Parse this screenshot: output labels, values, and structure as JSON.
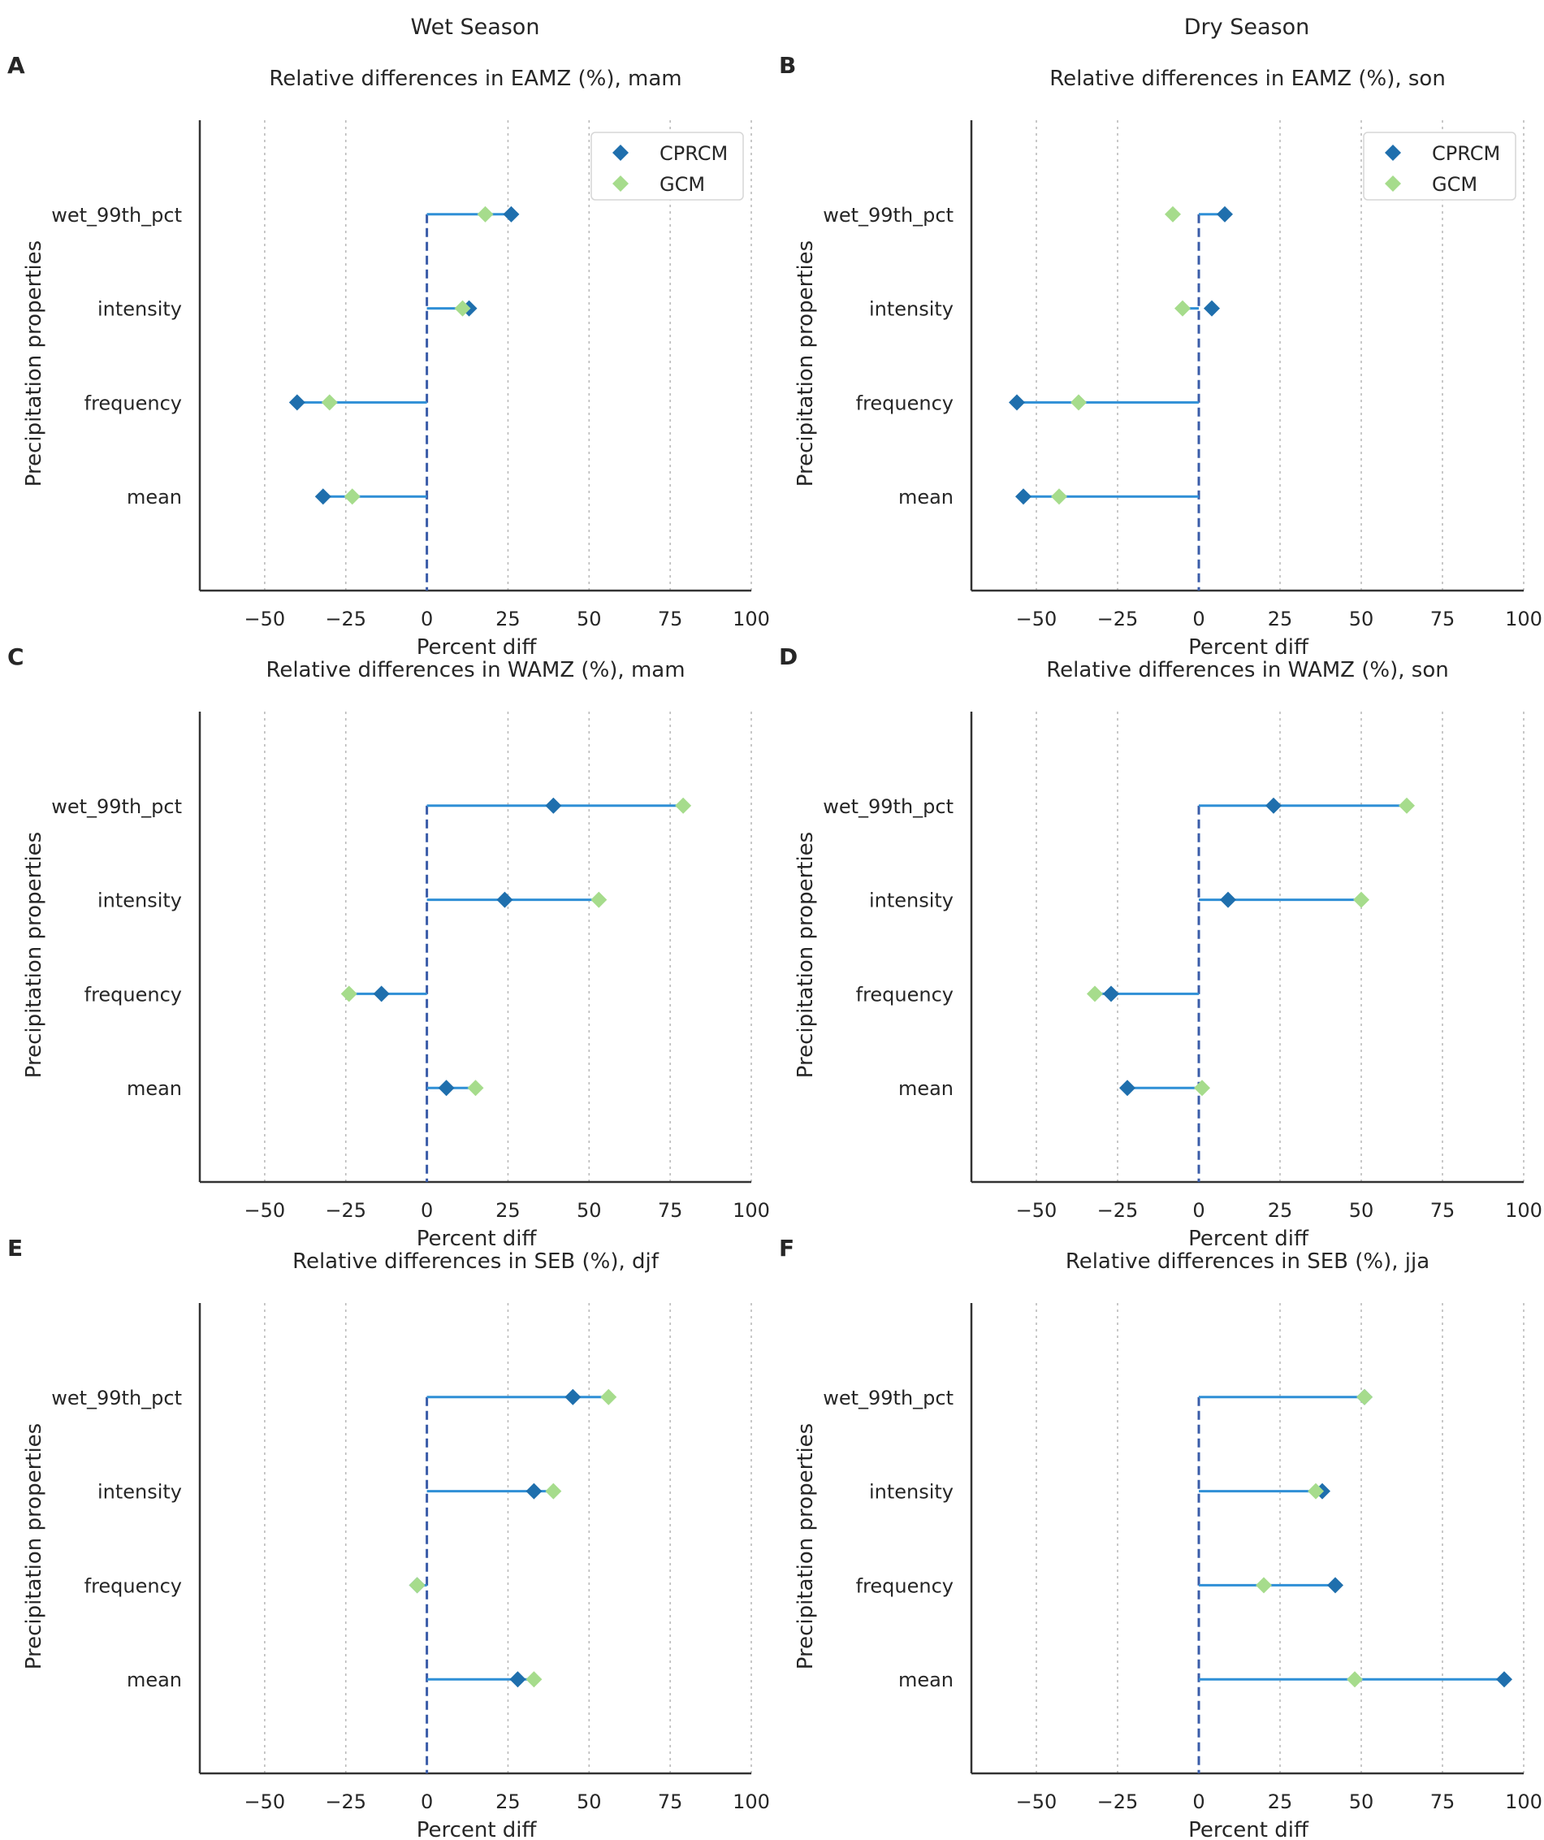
{
  "columns": [
    "Wet Season",
    "Dry Season"
  ],
  "categories": [
    "wet_99th_pct",
    "intensity",
    "frequency",
    "mean"
  ],
  "legend": [
    "CPRCM",
    "GCM"
  ],
  "colors": {
    "cprcm": "#1f6fad",
    "gcm": "#a6dc8c",
    "line": "#2f8fd6",
    "zero": "#3a5ca8",
    "axis": "#333333",
    "grid": "#bbbbbb"
  },
  "chart_data": [
    {
      "type": "lollipop",
      "panel": "A",
      "title": "Relative differences in EAMZ (%), mam",
      "xlabel": "Percent diff",
      "ylabel": "Precipitation properties",
      "xlim": [
        -70,
        100
      ],
      "xticks": [
        -50,
        -25,
        0,
        25,
        50,
        75,
        100
      ],
      "legend": true,
      "categories": [
        "wet_99th_pct",
        "intensity",
        "frequency",
        "mean"
      ],
      "series": [
        {
          "name": "CPRCM",
          "values": [
            26,
            13,
            -40,
            -32
          ]
        },
        {
          "name": "GCM",
          "values": [
            18,
            11,
            -30,
            -23
          ]
        }
      ]
    },
    {
      "type": "lollipop",
      "panel": "B",
      "title": "Relative differences in EAMZ (%), son",
      "xlabel": "Percent diff",
      "ylabel": "Precipitation properties",
      "xlim": [
        -70,
        100
      ],
      "xticks": [
        -50,
        -25,
        0,
        25,
        50,
        75,
        100
      ],
      "legend": true,
      "categories": [
        "wet_99th_pct",
        "intensity",
        "frequency",
        "mean"
      ],
      "series": [
        {
          "name": "CPRCM",
          "values": [
            8,
            4,
            -56,
            -54
          ]
        },
        {
          "name": "GCM",
          "values": [
            -8,
            -5,
            -37,
            -43
          ]
        }
      ]
    },
    {
      "type": "lollipop",
      "panel": "C",
      "title": "Relative differences in WAMZ (%), mam",
      "xlabel": "Percent diff",
      "ylabel": "Precipitation properties",
      "xlim": [
        -70,
        100
      ],
      "xticks": [
        -50,
        -25,
        0,
        25,
        50,
        75,
        100
      ],
      "legend": false,
      "categories": [
        "wet_99th_pct",
        "intensity",
        "frequency",
        "mean"
      ],
      "series": [
        {
          "name": "CPRCM",
          "values": [
            39,
            24,
            -14,
            6
          ]
        },
        {
          "name": "GCM",
          "values": [
            79,
            53,
            -24,
            15
          ]
        }
      ]
    },
    {
      "type": "lollipop",
      "panel": "D",
      "title": "Relative differences in WAMZ (%), son",
      "xlabel": "Percent diff",
      "ylabel": "Precipitation properties",
      "xlim": [
        -70,
        100
      ],
      "xticks": [
        -50,
        -25,
        0,
        25,
        50,
        75,
        100
      ],
      "legend": false,
      "categories": [
        "wet_99th_pct",
        "intensity",
        "frequency",
        "mean"
      ],
      "series": [
        {
          "name": "CPRCM",
          "values": [
            23,
            9,
            -27,
            -22
          ]
        },
        {
          "name": "GCM",
          "values": [
            64,
            50,
            -32,
            1
          ]
        }
      ]
    },
    {
      "type": "lollipop",
      "panel": "E",
      "title": "Relative differences in SEB (%), djf",
      "xlabel": "Percent diff",
      "ylabel": "Precipitation properties",
      "xlim": [
        -70,
        100
      ],
      "xticks": [
        -50,
        -25,
        0,
        25,
        50,
        75,
        100
      ],
      "legend": false,
      "categories": [
        "wet_99th_pct",
        "intensity",
        "frequency",
        "mean"
      ],
      "series": [
        {
          "name": "CPRCM",
          "values": [
            45,
            33,
            -3,
            28
          ]
        },
        {
          "name": "GCM",
          "values": [
            56,
            39,
            -3,
            33
          ]
        }
      ]
    },
    {
      "type": "lollipop",
      "panel": "F",
      "title": "Relative differences in SEB (%), jja",
      "xlabel": "Percent diff",
      "ylabel": "Precipitation properties",
      "xlim": [
        -70,
        100
      ],
      "xticks": [
        -50,
        -25,
        0,
        25,
        50,
        75,
        100
      ],
      "legend": false,
      "categories": [
        "wet_99th_pct",
        "intensity",
        "frequency",
        "mean"
      ],
      "series": [
        {
          "name": "CPRCM",
          "values": [
            51,
            38,
            42,
            94
          ]
        },
        {
          "name": "GCM",
          "values": [
            51,
            36,
            20,
            48
          ]
        }
      ]
    }
  ]
}
